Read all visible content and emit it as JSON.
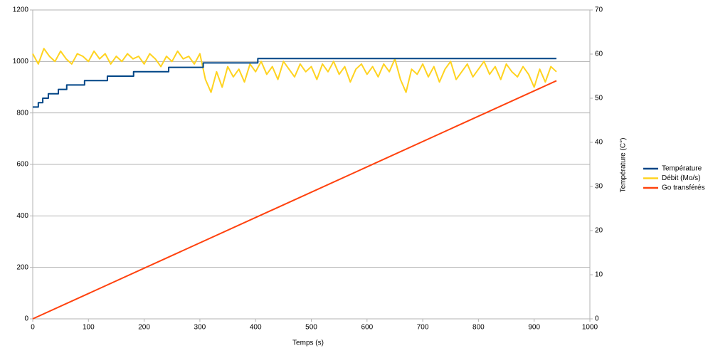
{
  "chart_data": {
    "type": "line",
    "xlabel": "Temps (s)",
    "y2label": "Température (C°)",
    "xlim": [
      0,
      1000
    ],
    "xticks": [
      0,
      100,
      200,
      300,
      400,
      500,
      600,
      700,
      800,
      900,
      1000
    ],
    "ylim": [
      0,
      1200
    ],
    "yticks": [
      0,
      200,
      400,
      600,
      800,
      1000,
      1200
    ],
    "y2lim": [
      0,
      70
    ],
    "y2ticks": [
      0,
      10,
      20,
      30,
      40,
      50,
      60,
      70
    ],
    "grid": true,
    "legend": "right",
    "series": [
      {
        "name": "Température",
        "color": "#004586",
        "axis": "y2",
        "x": [
          0,
          10,
          10,
          18,
          18,
          28,
          28,
          46,
          46,
          61,
          61,
          93,
          93,
          134,
          134,
          181,
          181,
          244,
          244,
          306,
          306,
          404,
          404,
          940
        ],
        "values": [
          48,
          48,
          49,
          49,
          50,
          50,
          51,
          51,
          52,
          52,
          53,
          53,
          54,
          54,
          55,
          55,
          56,
          56,
          57,
          57,
          58,
          58,
          59,
          59
        ]
      },
      {
        "name": "Débit (Mo/s)",
        "color": "#ffd320",
        "x": [
          0,
          10,
          20,
          30,
          40,
          50,
          60,
          70,
          80,
          90,
          100,
          110,
          120,
          130,
          140,
          150,
          160,
          170,
          180,
          190,
          200,
          210,
          220,
          230,
          240,
          250,
          260,
          270,
          280,
          290,
          300,
          310,
          320,
          330,
          340,
          350,
          360,
          370,
          380,
          390,
          400,
          410,
          420,
          430,
          440,
          450,
          460,
          470,
          480,
          490,
          500,
          510,
          520,
          530,
          540,
          550,
          560,
          570,
          580,
          590,
          600,
          610,
          620,
          630,
          640,
          650,
          660,
          670,
          680,
          690,
          700,
          710,
          720,
          730,
          740,
          750,
          760,
          770,
          780,
          790,
          800,
          810,
          820,
          830,
          840,
          850,
          860,
          870,
          880,
          890,
          900,
          910,
          920,
          930,
          940
        ],
        "values": [
          1030,
          990,
          1050,
          1020,
          1000,
          1040,
          1010,
          990,
          1030,
          1020,
          1000,
          1040,
          1010,
          1030,
          990,
          1020,
          1000,
          1030,
          1010,
          1020,
          990,
          1030,
          1010,
          980,
          1020,
          1000,
          1040,
          1010,
          1020,
          990,
          1030,
          930,
          880,
          960,
          900,
          980,
          940,
          970,
          920,
          990,
          960,
          1000,
          950,
          980,
          930,
          1000,
          970,
          940,
          990,
          960,
          980,
          930,
          990,
          960,
          1000,
          950,
          980,
          920,
          970,
          990,
          950,
          980,
          940,
          990,
          960,
          1010,
          930,
          880,
          970,
          950,
          990,
          940,
          980,
          920,
          970,
          1000,
          930,
          960,
          990,
          940,
          970,
          1000,
          950,
          980,
          930,
          990,
          960,
          940,
          980,
          950,
          900,
          970,
          920,
          980,
          960
        ]
      },
      {
        "name": "Go transférés",
        "color": "#ff420e",
        "x": [
          0,
          940
        ],
        "values": [
          0,
          925
        ]
      }
    ]
  }
}
